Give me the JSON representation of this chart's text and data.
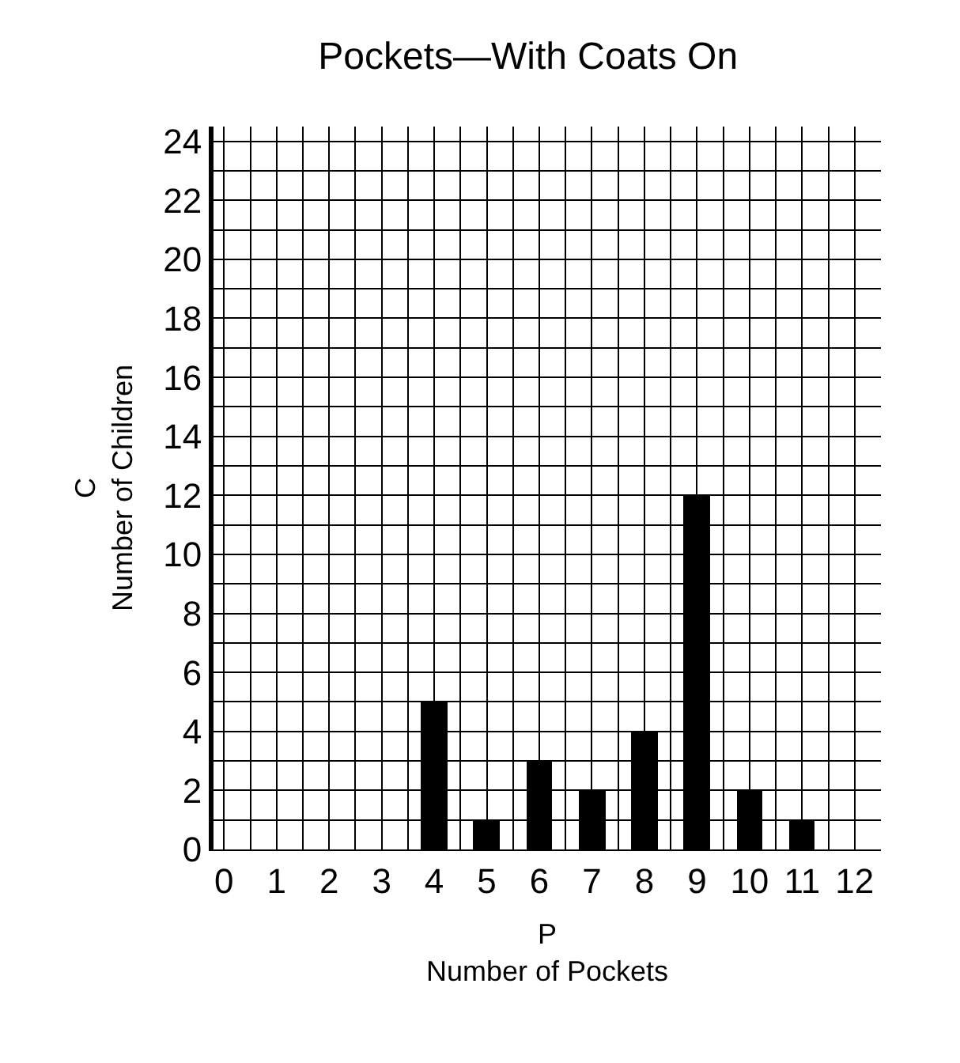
{
  "chart_data": {
    "type": "bar",
    "title": "Pockets—With Coats On",
    "xlabel": "P\nNumber of Pockets",
    "ylabel": "C\nNumber of Children",
    "x": [
      4,
      5,
      6,
      7,
      8,
      9,
      10,
      11
    ],
    "values": [
      5,
      1,
      3,
      2,
      4,
      12,
      2,
      1
    ],
    "color": "#000000",
    "xlim": [
      -0.2,
      12.5
    ],
    "xticks": [
      0,
      {
        "value": 0.5,
        "label": null
      },
      1,
      {
        "value": 1.5,
        "label": null
      },
      2,
      {
        "value": 2.5,
        "label": null
      },
      3,
      {
        "value": 3.5,
        "label": null
      },
      4,
      {
        "value": 4.5,
        "label": null
      },
      5,
      {
        "value": 5.5,
        "label": null
      },
      6,
      {
        "value": 6.5,
        "label": null
      },
      7,
      {
        "value": 7.5,
        "label": null
      },
      8,
      {
        "value": 8.5,
        "label": null
      },
      9,
      {
        "value": 9.5,
        "label": null
      },
      10,
      {
        "value": 10.5,
        "label": null
      },
      11,
      {
        "value": 11.5,
        "label": null
      },
      12
    ],
    "ylim": [
      0,
      24.5
    ],
    "yticks": [
      0,
      {
        "value": 1,
        "label": null
      },
      2,
      {
        "value": 3,
        "label": null
      },
      4,
      {
        "value": 5,
        "label": null
      },
      6,
      {
        "value": 7,
        "label": null
      },
      8,
      {
        "value": 9,
        "label": null
      },
      10,
      {
        "value": 11,
        "label": null
      },
      12,
      {
        "value": 13,
        "label": null
      },
      14,
      {
        "value": 15,
        "label": null
      },
      16,
      {
        "value": 17,
        "label": null
      },
      18,
      {
        "value": 19,
        "label": null
      },
      20,
      {
        "value": 21,
        "label": null
      },
      22,
      {
        "value": 23,
        "label": null
      },
      24
    ],
    "grid": true
  }
}
